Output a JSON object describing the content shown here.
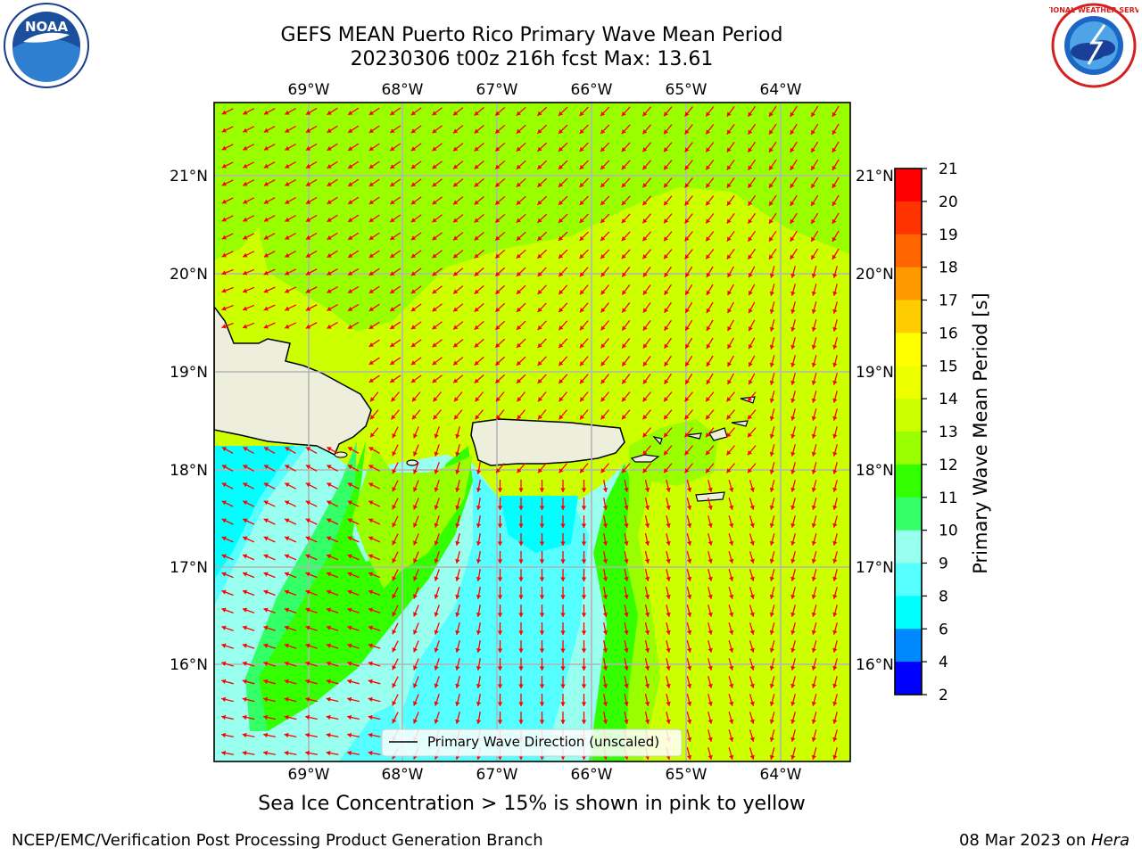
{
  "title": {
    "line1": "GEFS MEAN Puerto Rico Primary Wave Mean Period",
    "line2": "20230306 t00z 216h fcst   Max: 13.61"
  },
  "map": {
    "lon_labels": [
      "69°W",
      "68°W",
      "67°W",
      "66°W",
      "65°W",
      "64°W"
    ],
    "lat_labels": [
      "21°N",
      "20°N",
      "19°N",
      "18°N",
      "17°N",
      "16°N"
    ],
    "legend_label": "Primary Wave Direction (unscaled)",
    "arrow_color": "#ff0000",
    "land_color": "#eeeedd"
  },
  "colorbar": {
    "label": "Primary Wave Mean Period [s]",
    "ticks": [
      "21",
      "20",
      "19",
      "18",
      "17",
      "16",
      "15",
      "14",
      "13",
      "12",
      "11",
      "10",
      "9",
      "8",
      "6",
      "4",
      "2"
    ],
    "colors": [
      "#ff0000",
      "#ff3300",
      "#ff6600",
      "#ff9900",
      "#ffcc00",
      "#ffff00",
      "#eeff00",
      "#ccff00",
      "#99ff00",
      "#33ff00",
      "#33ff66",
      "#99ffee",
      "#55ffff",
      "#00ffff",
      "#0088ff",
      "#0000ff"
    ]
  },
  "caption": "Sea Ice Concentration > 15% is shown in pink to yellow",
  "footer": {
    "left": "NCEP/EMC/Verification Post Processing Product Generation Branch",
    "right_prefix": "08 Mar 2023 on ",
    "right_italic": "Hera"
  },
  "logos": {
    "noaa": "NOAA",
    "nws": "NATIONAL WEATHER SERVICE"
  }
}
